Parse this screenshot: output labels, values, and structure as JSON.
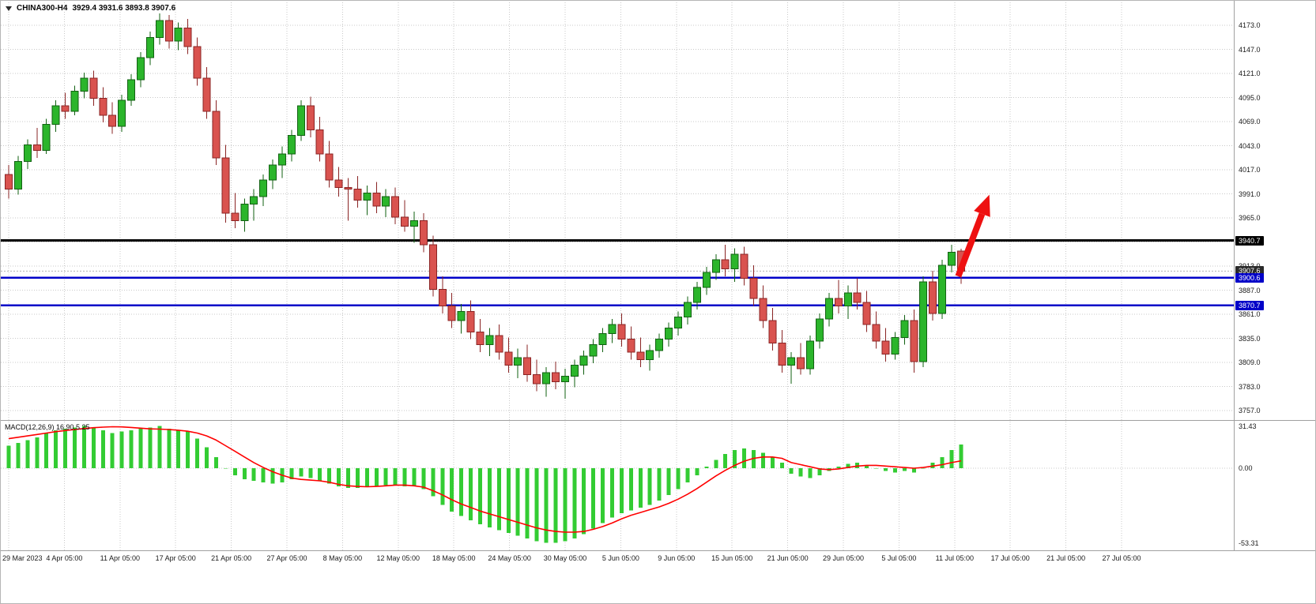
{
  "header": {
    "symbol": "CHINA300-H4",
    "ohlc": "3929.4 3931.6 3893.8 3907.6"
  },
  "price_axis": {
    "ticks": [
      4173,
      4147,
      4121,
      4095,
      4069,
      4043,
      4017,
      3991,
      3965,
      3939,
      3913,
      3887,
      3861,
      3835,
      3809,
      3783,
      3757
    ],
    "level_badges": [
      {
        "value": "3940.7",
        "price": 3940.7,
        "color": "#000000"
      },
      {
        "value": "3907.6",
        "price": 3907.6,
        "color": "#2a2a2a"
      },
      {
        "value": "3900.6",
        "price": 3900.6,
        "color": "#0202c8"
      },
      {
        "value": "3870.7",
        "price": 3870.7,
        "color": "#0202c8"
      }
    ]
  },
  "time_axis": {
    "labels": [
      "29 Mar 2023",
      "4 Apr 05:00",
      "11 Apr 05:00",
      "17 Apr 05:00",
      "21 Apr 05:00",
      "27 Apr 05:00",
      "8 May 05:00",
      "12 May 05:00",
      "18 May 05:00",
      "24 May 05:00",
      "30 May 05:00",
      "5 Jun 05:00",
      "9 Jun 05:00",
      "15 Jun 05:00",
      "21 Jun 05:00",
      "29 Jun 05:00",
      "5 Jul 05:00",
      "11 Jul 05:00",
      "17 Jul 05:00",
      "21 Jul 05:00",
      "27 Jul 05:00"
    ]
  },
  "macd": {
    "label": "MACD(12,26,9) 16.90,5.25",
    "axis_ticks": [
      "31.43",
      "0.00",
      "-53.31"
    ]
  },
  "palette": {
    "bull_fill": "#2bb52b",
    "bull_stroke": "#126112",
    "bear_fill": "#d9534f",
    "bear_stroke": "#8a2424",
    "macd_bar": "#33cc33",
    "macd_signal": "#ff0000",
    "grid": "#c9c9c9",
    "separator": "#a0a0a0",
    "current_price_line": "#b0b0b0",
    "axis_text": "#1a1a1a"
  },
  "chart_data": {
    "type": "candlestick",
    "title": "CHINA300-H4",
    "timeframe": "H4",
    "ohlc_last": {
      "open": 3929.4,
      "high": 3931.6,
      "low": 3893.8,
      "close": 3907.6
    },
    "y_ticks": [
      4173,
      4147,
      4121,
      4095,
      4069,
      4043,
      4017,
      3991,
      3965,
      3939,
      3913,
      3887,
      3861,
      3835,
      3809,
      3783,
      3757
    ],
    "x_tick_labels": [
      "29 Mar 2023",
      "4 Apr 05:00",
      "11 Apr 05:00",
      "17 Apr 05:00",
      "21 Apr 05:00",
      "27 Apr 05:00",
      "8 May 05:00",
      "12 May 05:00",
      "18 May 05:00",
      "24 May 05:00",
      "30 May 05:00",
      "5 Jun 05:00",
      "9 Jun 05:00",
      "15 Jun 05:00",
      "21 Jun 05:00",
      "29 Jun 05:00",
      "5 Jul 05:00",
      "11 Jul 05:00",
      "17 Jul 05:00",
      "21 Jul 05:00",
      "27 Jul 05:00"
    ],
    "price_axis_range": [
      3745,
      4188
    ],
    "current_price": 3907.6,
    "horizontal_lines": [
      {
        "price": 3940.7,
        "color": "#000000",
        "width": 3
      },
      {
        "price": 3900.6,
        "color": "#0202c8",
        "width": 2.5
      },
      {
        "price": 3870.7,
        "color": "#0202c8",
        "width": 2.5
      }
    ],
    "annotation_arrow": {
      "from_bar": 100.7,
      "from_price": 3902,
      "to_bar": 104,
      "to_price": 3990,
      "color": "#ee1111"
    },
    "candles": [
      [
        4012,
        4022,
        3986,
        3996
      ],
      [
        3996,
        4032,
        3990,
        4026
      ],
      [
        4026,
        4050,
        4018,
        4044
      ],
      [
        4044,
        4062,
        4030,
        4038
      ],
      [
        4038,
        4072,
        4034,
        4066
      ],
      [
        4066,
        4092,
        4058,
        4086
      ],
      [
        4086,
        4100,
        4072,
        4080
      ],
      [
        4080,
        4108,
        4076,
        4102
      ],
      [
        4102,
        4122,
        4094,
        4116
      ],
      [
        4116,
        4124,
        4086,
        4094
      ],
      [
        4094,
        4106,
        4068,
        4076
      ],
      [
        4076,
        4090,
        4056,
        4064
      ],
      [
        4064,
        4098,
        4058,
        4092
      ],
      [
        4092,
        4120,
        4086,
        4114
      ],
      [
        4114,
        4144,
        4106,
        4138
      ],
      [
        4138,
        4166,
        4130,
        4160
      ],
      [
        4160,
        4186,
        4152,
        4178
      ],
      [
        4178,
        4184,
        4148,
        4156
      ],
      [
        4156,
        4176,
        4146,
        4170
      ],
      [
        4170,
        4180,
        4142,
        4150
      ],
      [
        4150,
        4160,
        4108,
        4116
      ],
      [
        4116,
        4128,
        4072,
        4080
      ],
      [
        4080,
        4092,
        4022,
        4030
      ],
      [
        4030,
        4044,
        3960,
        3970
      ],
      [
        3970,
        3992,
        3954,
        3962
      ],
      [
        3962,
        3986,
        3950,
        3980
      ],
      [
        3980,
        3996,
        3962,
        3988
      ],
      [
        3988,
        4012,
        3978,
        4006
      ],
      [
        4006,
        4028,
        3996,
        4022
      ],
      [
        4022,
        4042,
        4008,
        4034
      ],
      [
        4034,
        4060,
        4026,
        4054
      ],
      [
        4054,
        4092,
        4048,
        4086
      ],
      [
        4086,
        4096,
        4052,
        4060
      ],
      [
        4060,
        4074,
        4026,
        4034
      ],
      [
        4034,
        4048,
        3998,
        4006
      ],
      [
        4006,
        4020,
        3988,
        3998
      ],
      [
        3998,
        4008,
        3962,
        3996
      ],
      [
        3996,
        4010,
        3976,
        3984
      ],
      [
        3984,
        4000,
        3968,
        3992
      ],
      [
        3992,
        4004,
        3970,
        3978
      ],
      [
        3978,
        3996,
        3966,
        3988
      ],
      [
        3988,
        3998,
        3958,
        3966
      ],
      [
        3966,
        3984,
        3950,
        3956
      ],
      [
        3956,
        3972,
        3938,
        3962
      ],
      [
        3962,
        3970,
        3928,
        3936
      ],
      [
        3936,
        3946,
        3880,
        3888
      ],
      [
        3888,
        3902,
        3862,
        3870
      ],
      [
        3870,
        3884,
        3846,
        3854
      ],
      [
        3854,
        3872,
        3840,
        3864
      ],
      [
        3864,
        3876,
        3834,
        3842
      ],
      [
        3842,
        3856,
        3820,
        3828
      ],
      [
        3828,
        3846,
        3816,
        3838
      ],
      [
        3838,
        3850,
        3812,
        3820
      ],
      [
        3820,
        3836,
        3798,
        3806
      ],
      [
        3806,
        3824,
        3792,
        3814
      ],
      [
        3814,
        3828,
        3788,
        3796
      ],
      [
        3796,
        3812,
        3778,
        3786
      ],
      [
        3786,
        3804,
        3772,
        3798
      ],
      [
        3798,
        3810,
        3780,
        3788
      ],
      [
        3788,
        3802,
        3770,
        3794
      ],
      [
        3794,
        3812,
        3782,
        3806
      ],
      [
        3806,
        3822,
        3796,
        3816
      ],
      [
        3816,
        3834,
        3808,
        3828
      ],
      [
        3828,
        3846,
        3820,
        3840
      ],
      [
        3840,
        3856,
        3830,
        3850
      ],
      [
        3850,
        3862,
        3826,
        3834
      ],
      [
        3834,
        3848,
        3812,
        3820
      ],
      [
        3820,
        3836,
        3804,
        3812
      ],
      [
        3812,
        3828,
        3800,
        3822
      ],
      [
        3822,
        3840,
        3814,
        3834
      ],
      [
        3834,
        3852,
        3826,
        3846
      ],
      [
        3846,
        3864,
        3838,
        3858
      ],
      [
        3858,
        3880,
        3850,
        3874
      ],
      [
        3874,
        3896,
        3866,
        3890
      ],
      [
        3890,
        3912,
        3882,
        3906
      ],
      [
        3906,
        3926,
        3898,
        3920
      ],
      [
        3920,
        3936,
        3902,
        3910
      ],
      [
        3910,
        3932,
        3896,
        3926
      ],
      [
        3926,
        3934,
        3892,
        3900
      ],
      [
        3900,
        3914,
        3870,
        3878
      ],
      [
        3878,
        3892,
        3846,
        3854
      ],
      [
        3854,
        3868,
        3822,
        3830
      ],
      [
        3830,
        3844,
        3798,
        3806
      ],
      [
        3806,
        3820,
        3786,
        3814
      ],
      [
        3814,
        3830,
        3796,
        3802
      ],
      [
        3802,
        3838,
        3796,
        3832
      ],
      [
        3832,
        3862,
        3824,
        3856
      ],
      [
        3856,
        3884,
        3848,
        3878
      ],
      [
        3878,
        3898,
        3862,
        3870
      ],
      [
        3870,
        3892,
        3856,
        3884
      ],
      [
        3884,
        3900,
        3866,
        3874
      ],
      [
        3874,
        3886,
        3842,
        3850
      ],
      [
        3850,
        3864,
        3824,
        3832
      ],
      [
        3832,
        3846,
        3810,
        3818
      ],
      [
        3818,
        3842,
        3812,
        3836
      ],
      [
        3836,
        3860,
        3828,
        3854
      ],
      [
        3854,
        3866,
        3798,
        3810
      ],
      [
        3810,
        3902,
        3804,
        3896
      ],
      [
        3896,
        3908,
        3854,
        3862
      ],
      [
        3862,
        3920,
        3856,
        3914
      ],
      [
        3914,
        3936,
        3906,
        3928
      ],
      [
        3929.4,
        3931.6,
        3893.8,
        3907.6
      ]
    ],
    "macd_indicator": {
      "type": "histogram+signal",
      "params": [
        12,
        26,
        9
      ],
      "axis_range": [
        -53.31,
        31.43
      ],
      "histogram": [
        16,
        18,
        20,
        22,
        25,
        27,
        28,
        29,
        30,
        29,
        27,
        25,
        26,
        27,
        28,
        29,
        30,
        28,
        27,
        26,
        21,
        15,
        8,
        0,
        -5,
        -8,
        -9,
        -10,
        -11,
        -10,
        -8,
        -6,
        -7,
        -9,
        -11,
        -13,
        -14,
        -14,
        -13,
        -13,
        -12,
        -12,
        -13,
        -13,
        -15,
        -20,
        -26,
        -31,
        -34,
        -37,
        -40,
        -42,
        -44,
        -46,
        -48,
        -50,
        -52,
        -53,
        -53,
        -52,
        -50,
        -47,
        -43,
        -39,
        -35,
        -32,
        -30,
        -28,
        -26,
        -23,
        -19,
        -15,
        -10,
        -5,
        1,
        6,
        10,
        13,
        14,
        13,
        11,
        8,
        4,
        -4,
        -6,
        -7,
        -5,
        -2,
        1,
        3,
        4,
        2,
        0,
        -2,
        -3,
        -2,
        -3,
        0,
        4,
        8,
        13,
        16.9
      ],
      "signal": [
        21,
        22,
        23,
        24,
        25,
        26,
        26.8,
        27.5,
        28.2,
        28.8,
        29.2,
        29.5,
        29.4,
        29,
        28.5,
        28,
        27.8,
        27.5,
        27,
        26.3,
        25,
        23,
        20,
        16,
        12,
        8,
        4,
        0.5,
        -2.5,
        -5,
        -7,
        -8,
        -8.5,
        -9,
        -10,
        -11.5,
        -12.5,
        -13,
        -13.2,
        -13,
        -12.5,
        -12,
        -12,
        -12.5,
        -13.5,
        -16,
        -19,
        -22.5,
        -25.5,
        -28,
        -30.5,
        -32.5,
        -34.5,
        -36.5,
        -38.5,
        -40.5,
        -42.5,
        -44,
        -45,
        -45.5,
        -45.5,
        -45,
        -43.5,
        -41.5,
        -39,
        -36,
        -33.5,
        -31.5,
        -29.5,
        -27.5,
        -25,
        -22,
        -18.5,
        -14.5,
        -10,
        -5.5,
        -1.5,
        2,
        5,
        7,
        8,
        8,
        7,
        4,
        2.5,
        1,
        -0.5,
        -1,
        -0.5,
        0.5,
        1.5,
        2,
        2,
        1.5,
        1,
        0.5,
        0,
        0.5,
        1.5,
        2.5,
        4,
        5.25
      ]
    }
  }
}
